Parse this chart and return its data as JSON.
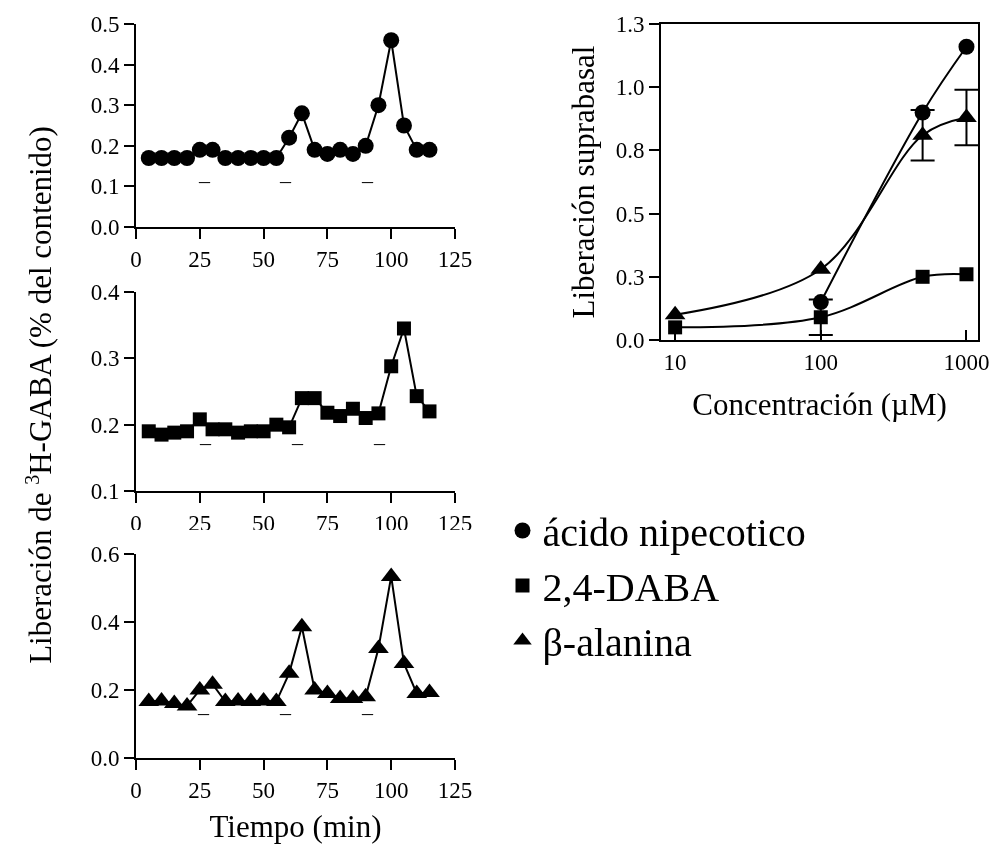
{
  "chart_data": [
    {
      "type": "line",
      "x": [
        5,
        10,
        15,
        20,
        25,
        30,
        35,
        40,
        45,
        50,
        55,
        60,
        65,
        70,
        75,
        80,
        85,
        90,
        95,
        100,
        105,
        110,
        115
      ],
      "series": [
        {
          "color": "#000000",
          "marker": "circle",
          "values": [
            0.17,
            0.17,
            0.17,
            0.17,
            0.19,
            0.19,
            0.17,
            0.17,
            0.17,
            0.17,
            0.17,
            0.22,
            0.28,
            0.19,
            0.18,
            0.19,
            0.18,
            0.2,
            0.3,
            0.46,
            0.25,
            0.19,
            0.19
          ]
        }
      ],
      "xlim": [
        0,
        125
      ],
      "xticks": [
        0,
        25,
        50,
        75,
        100,
        125
      ],
      "ylim": [
        0,
        0.5
      ],
      "yticks": [
        {
          "value": 0,
          "label": "0.0"
        },
        0.1,
        0.2,
        0.3,
        0.4,
        0.5
      ],
      "grid": false,
      "line_style": "solid",
      "annotations": [
        "–",
        "–",
        "–"
      ]
    },
    {
      "type": "line",
      "x": [
        5,
        10,
        15,
        20,
        25,
        30,
        35,
        40,
        45,
        50,
        55,
        60,
        65,
        70,
        75,
        80,
        85,
        90,
        95,
        100,
        105,
        110,
        115
      ],
      "series": [
        {
          "color": "#000000",
          "marker": "square",
          "values": [
            0.19,
            0.185,
            0.188,
            0.19,
            0.208,
            0.193,
            0.193,
            0.188,
            0.19,
            0.19,
            0.2,
            0.196,
            0.24,
            0.24,
            0.218,
            0.213,
            0.224,
            0.21,
            0.217,
            0.288,
            0.345,
            0.243,
            0.22
          ]
        }
      ],
      "xlim": [
        0,
        125
      ],
      "xticks": [
        0,
        25,
        50,
        75,
        100,
        125
      ],
      "ylim": [
        0.1,
        0.4
      ],
      "yticks": [
        0.1,
        0.2,
        0.3,
        0.4
      ],
      "ylabel": "Liberación de $^{3}$H-GABA (% del contenido)",
      "grid": false,
      "line_style": "solid",
      "annotations": [
        "–",
        "–",
        "–"
      ]
    },
    {
      "type": "line",
      "x": [
        5,
        10,
        15,
        20,
        25,
        30,
        35,
        40,
        45,
        50,
        55,
        60,
        65,
        70,
        75,
        80,
        85,
        90,
        95,
        100,
        105,
        110,
        115
      ],
      "series": [
        {
          "color": "#000000",
          "marker": "triangle",
          "values": [
            0.166,
            0.168,
            0.16,
            0.153,
            0.2,
            0.217,
            0.166,
            0.168,
            0.166,
            0.168,
            0.166,
            0.249,
            0.386,
            0.2,
            0.19,
            0.175,
            0.175,
            0.18,
            0.322,
            0.534,
            0.278,
            0.19,
            0.193
          ]
        }
      ],
      "xlim": [
        0,
        125
      ],
      "xticks": [
        0,
        25,
        50,
        75,
        100,
        125
      ],
      "ylim": [
        0,
        0.6
      ],
      "yticks": [
        {
          "value": 0,
          "label": "0.0"
        },
        0.2,
        0.4,
        0.6
      ],
      "xlabel": "Tiempo (min)",
      "grid": false,
      "line_style": "solid",
      "annotations": [
        "–",
        "–",
        "–"
      ]
    },
    {
      "type": "line",
      "x": [
        10,
        100,
        500,
        1000
      ],
      "series": [
        {
          "name": "ácido nipecotico",
          "color": "#000000",
          "marker": "circle",
          "values": [
            null,
            0.15,
            0.9,
            1.16
          ]
        },
        {
          "name": "2,4-DABA",
          "color": "#000000",
          "marker": "square",
          "values": [
            0.05,
            0.09,
            0.25,
            0.26
          ],
          "errors": [
            null,
            0.07,
            null,
            null
          ]
        },
        {
          "name": "β-alanina",
          "color": "#000000",
          "marker": "triangle",
          "values": [
            0.1,
            0.28,
            0.81,
            0.88
          ],
          "errors": [
            null,
            null,
            0.1,
            0.11
          ]
        }
      ],
      "xlim": [
        8,
        1200
      ],
      "xticks": [
        10,
        100,
        1000
      ],
      "log": "x",
      "ylim": [
        0,
        1.25
      ],
      "yticks": [
        {
          "value": 0,
          "label": "0.0"
        },
        {
          "value": 0.25,
          "label": "0.3"
        },
        0.5,
        {
          "value": 0.75,
          "label": "0.8"
        },
        {
          "value": 1,
          "label": "1.0"
        },
        {
          "value": 1.25,
          "label": "1.3"
        }
      ],
      "xlabel": "Concentración (µM)",
      "ylabel": "Liberación suprabasal",
      "grid": false,
      "legend": "bottom",
      "line_style": "solid"
    }
  ]
}
